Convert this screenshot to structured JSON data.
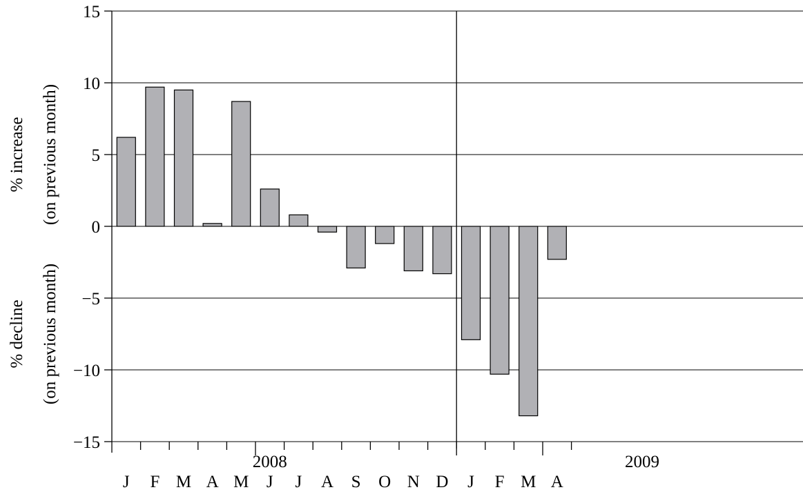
{
  "chart_data": {
    "type": "bar",
    "title": "",
    "ylabel_positive": [
      "% increase",
      "(on previous month)"
    ],
    "ylabel_negative": [
      "% decline",
      "(on previous month)"
    ],
    "ylim": [
      -15,
      15
    ],
    "yticks": [
      15,
      10,
      5,
      0,
      -5,
      -10,
      -15
    ],
    "ytick_labels": [
      "15",
      "10",
      "5",
      "0",
      "−5",
      "−10",
      "−15"
    ],
    "grid": true,
    "years": [
      "2008",
      "2009"
    ],
    "categories": [
      "J",
      "F",
      "M",
      "A",
      "M",
      "J",
      "J",
      "A",
      "S",
      "O",
      "N",
      "D",
      "J",
      "F",
      "M",
      "A"
    ],
    "values": [
      6.2,
      9.7,
      9.5,
      0.2,
      8.7,
      2.6,
      0.8,
      -0.4,
      -2.9,
      -1.2,
      -3.1,
      -3.3,
      -7.9,
      -10.3,
      -13.2,
      -2.3
    ],
    "bar_color": "#b1b1b5"
  }
}
